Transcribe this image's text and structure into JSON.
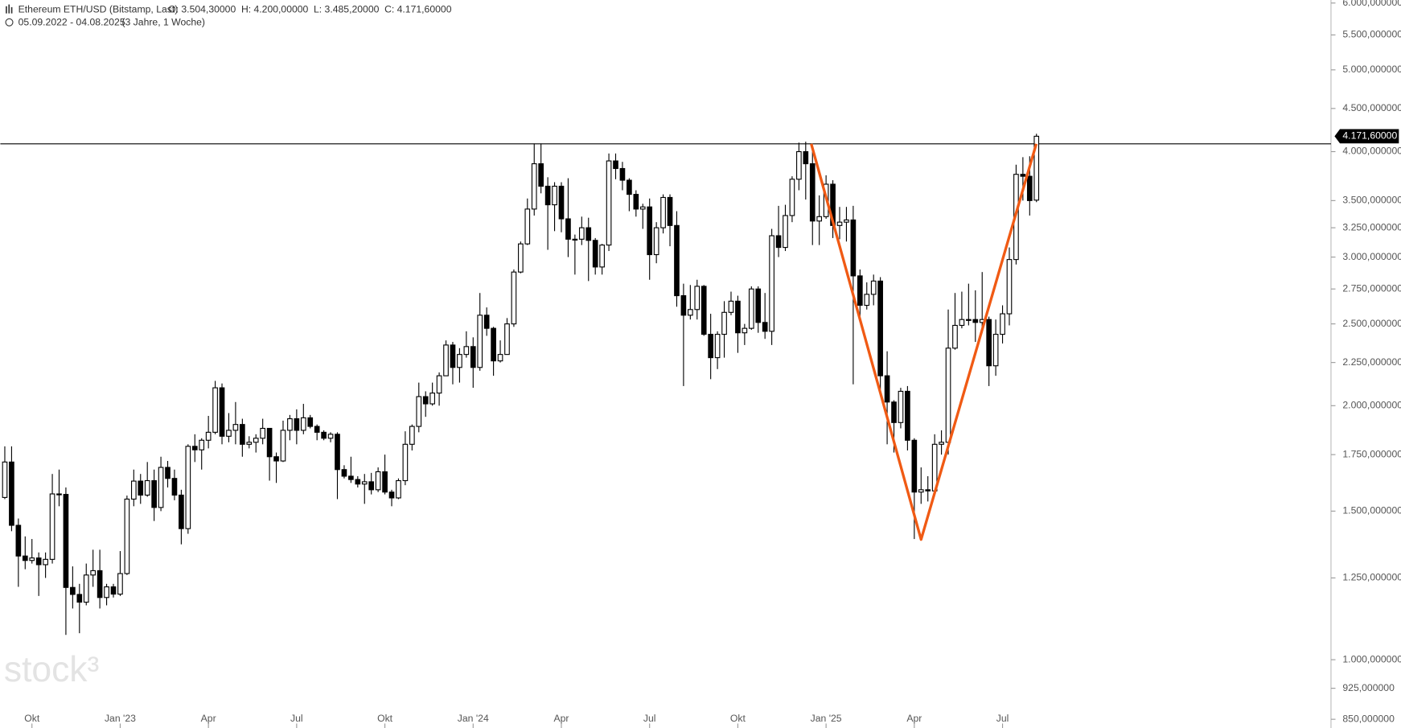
{
  "chart_data": {
    "type": "candlestick",
    "title": "Ethereum ETH/USD (Bitstamp, Last)",
    "header": [
      {
        "name": "O:",
        "label": "3.504,30000"
      },
      {
        "name": "H:",
        "label": "4.200,00000"
      },
      {
        "name": "L:",
        "label": "3.485,20000"
      },
      {
        "name": "C:",
        "label": "4.171,60000"
      }
    ],
    "subtitle": "05.09.2022 - 04.08.2025",
    "period": "(3 Jahre, 1 Woche)",
    "watermark": "stock³",
    "log_scale": true,
    "up_color": "#ffffff",
    "down_color": "#000000",
    "edge_color": "#000000",
    "categories": [
      null,
      null,
      null,
      null,
      "Okt",
      null,
      null,
      null,
      null,
      null,
      null,
      null,
      null,
      null,
      null,
      null,
      null,
      "Jan '23",
      null,
      null,
      null,
      null,
      null,
      null,
      null,
      null,
      null,
      null,
      null,
      null,
      "Apr",
      null,
      null,
      null,
      null,
      null,
      null,
      null,
      null,
      null,
      null,
      null,
      null,
      "Jul",
      null,
      null,
      null,
      null,
      null,
      null,
      null,
      null,
      null,
      null,
      null,
      null,
      "Okt",
      null,
      null,
      null,
      null,
      null,
      null,
      null,
      null,
      null,
      null,
      null,
      null,
      "Jan '24",
      null,
      null,
      null,
      null,
      null,
      null,
      null,
      null,
      null,
      null,
      null,
      null,
      "Apr",
      null,
      null,
      null,
      null,
      null,
      null,
      null,
      null,
      null,
      null,
      null,
      null,
      "Jul",
      null,
      null,
      null,
      null,
      null,
      null,
      null,
      null,
      null,
      null,
      null,
      null,
      "Okt",
      null,
      null,
      null,
      null,
      null,
      null,
      null,
      null,
      null,
      null,
      null,
      null,
      "Jan '25",
      null,
      null,
      null,
      null,
      null,
      null,
      null,
      null,
      null,
      null,
      null,
      null,
      "Apr",
      null,
      null,
      null,
      null,
      null,
      null,
      null,
      null,
      null,
      null,
      null,
      null,
      "Jul",
      null,
      null,
      null,
      null,
      null
    ],
    "open": [
      1557,
      1715,
      1443,
      1327,
      1311,
      1320,
      1296,
      1315,
      1572,
      1570,
      1218,
      1195,
      1170,
      1260,
      1275,
      1185,
      1220,
      1196,
      1265,
      1550,
      1628,
      1567,
      1630,
      1515,
      1690,
      1640,
      1567,
      1430,
      1790,
      1773,
      1820,
      1860,
      2100,
      1840,
      1870,
      1900,
      1800,
      1810,
      1830,
      1880,
      1740,
      1720,
      1870,
      1930,
      1870,
      1935,
      1890,
      1860,
      1830,
      1850,
      1680,
      1650,
      1635,
      1615,
      1625,
      1590,
      1670,
      1580,
      1555,
      1630,
      1800,
      1890,
      2050,
      2010,
      2070,
      2170,
      2360,
      2220,
      2300,
      2350,
      2220,
      2560,
      2470,
      2260,
      2300,
      2500,
      2880,
      3110,
      3420,
      3870,
      3640,
      3460,
      3640,
      3330,
      3150,
      3150,
      3250,
      3140,
      2920,
      3100,
      3900,
      3820,
      3700,
      3560,
      3420,
      3440,
      3020,
      3250,
      3530,
      3270,
      2700,
      2560,
      2600,
      2770,
      2430,
      2280,
      2430,
      2580,
      2660,
      2440,
      2470,
      2750,
      2510,
      2450,
      3180,
      3080,
      3360,
      3710,
      4000,
      3870,
      3310,
      3350,
      3660,
      3270,
      3300,
      3320,
      2850,
      2630,
      2710,
      2810,
      2170,
      2020,
      1910,
      2080,
      1820,
      1580,
      1590,
      1585,
      1800,
      1810,
      2340,
      2490,
      2530,
      2530,
      2510,
      2530,
      2230,
      2430,
      2570,
      2980,
      3760,
      3740,
      3504.3
    ],
    "high": [
      1790,
      1790,
      1470,
      1400,
      1390,
      1340,
      1340,
      1660,
      1680,
      1600,
      1290,
      1230,
      1300,
      1350,
      1350,
      1230,
      1230,
      1345,
      1565,
      1680,
      1660,
      1715,
      1680,
      1740,
      1720,
      1680,
      1590,
      1800,
      1850,
      1830,
      1945,
      2140,
      2125,
      1960,
      2020,
      1930,
      1840,
      1850,
      1930,
      1880,
      1760,
      1920,
      1950,
      1980,
      2010,
      1950,
      1900,
      1870,
      1860,
      1860,
      1700,
      1740,
      1650,
      1660,
      1665,
      1690,
      1750,
      1590,
      1640,
      1865,
      1900,
      2130,
      2080,
      2130,
      2190,
      2390,
      2380,
      2340,
      2450,
      2410,
      2720,
      2615,
      2480,
      2390,
      2540,
      2900,
      3130,
      3520,
      4090,
      4090,
      3730,
      3680,
      3680,
      3720,
      3190,
      3350,
      3340,
      3160,
      3110,
      3980,
      3980,
      3890,
      3720,
      3600,
      3470,
      3520,
      3300,
      3560,
      3560,
      3400,
      2790,
      2780,
      2820,
      2780,
      2570,
      2450,
      2660,
      2730,
      2700,
      2500,
      2770,
      2770,
      2720,
      3240,
      3450,
      3460,
      3740,
      4100,
      4110,
      4000,
      3550,
      3750,
      3700,
      3440,
      3440,
      3450,
      2900,
      2800,
      2860,
      2840,
      2320,
      2030,
      2100,
      2110,
      1830,
      1690,
      1650,
      1850,
      1870,
      2600,
      2720,
      2730,
      2790,
      2740,
      2880,
      2550,
      2530,
      2630,
      3080,
      3860,
      3940,
      3950,
      4200
    ],
    "low": [
      1550,
      1420,
      1220,
      1280,
      1300,
      1190,
      1250,
      1300,
      1520,
      1070,
      1150,
      1075,
      1160,
      1220,
      1150,
      1160,
      1185,
      1190,
      1260,
      1520,
      1530,
      1560,
      1460,
      1500,
      1600,
      1545,
      1370,
      1410,
      1715,
      1680,
      1780,
      1850,
      1800,
      1810,
      1800,
      1740,
      1780,
      1760,
      1800,
      1630,
      1620,
      1715,
      1820,
      1800,
      1850,
      1880,
      1820,
      1820,
      1810,
      1550,
      1640,
      1620,
      1600,
      1530,
      1570,
      1580,
      1570,
      1520,
      1550,
      1610,
      1770,
      1860,
      1940,
      2000,
      2000,
      2170,
      2120,
      2130,
      2280,
      2100,
      2200,
      2420,
      2170,
      2250,
      2300,
      2480,
      2870,
      3100,
      3360,
      3570,
      3060,
      3220,
      3210,
      3000,
      2860,
      3100,
      2810,
      2860,
      2860,
      3050,
      3710,
      3600,
      3400,
      3350,
      3240,
      2820,
      2950,
      3200,
      3090,
      2620,
      2110,
      2530,
      2530,
      2420,
      2150,
      2210,
      2280,
      2560,
      2310,
      2360,
      2460,
      2440,
      2400,
      2360,
      3000,
      3050,
      3300,
      3600,
      3510,
      3100,
      3100,
      3330,
      3160,
      3150,
      3130,
      2120,
      2550,
      2600,
      2630,
      2090,
      1800,
      1760,
      1880,
      1770,
      1390,
      1530,
      1540,
      1570,
      1750,
      1750,
      2330,
      2470,
      2490,
      2380,
      2440,
      2110,
      2170,
      2370,
      2490,
      2940,
      3500,
      3360,
      3485.2
    ],
    "close": [
      1715,
      1443,
      1327,
      1311,
      1320,
      1296,
      1315,
      1572,
      1570,
      1218,
      1195,
      1170,
      1260,
      1275,
      1185,
      1220,
      1196,
      1265,
      1550,
      1628,
      1567,
      1630,
      1515,
      1690,
      1640,
      1567,
      1430,
      1790,
      1773,
      1820,
      1860,
      2100,
      1840,
      1870,
      1900,
      1800,
      1810,
      1830,
      1880,
      1740,
      1720,
      1870,
      1930,
      1870,
      1935,
      1890,
      1860,
      1830,
      1850,
      1680,
      1650,
      1635,
      1615,
      1625,
      1590,
      1670,
      1580,
      1555,
      1630,
      1800,
      1890,
      2050,
      2010,
      2070,
      2170,
      2360,
      2220,
      2300,
      2350,
      2220,
      2560,
      2470,
      2260,
      2300,
      2500,
      2880,
      3110,
      3420,
      3870,
      3640,
      3460,
      3640,
      3330,
      3150,
      3150,
      3250,
      3140,
      2920,
      3100,
      3900,
      3820,
      3700,
      3560,
      3420,
      3440,
      3020,
      3250,
      3530,
      3270,
      2700,
      2560,
      2600,
      2770,
      2430,
      2280,
      2430,
      2580,
      2660,
      2440,
      2470,
      2750,
      2510,
      2450,
      3180,
      3080,
      3360,
      3710,
      4000,
      3870,
      3310,
      3350,
      3660,
      3270,
      3300,
      3320,
      2850,
      2630,
      2710,
      2810,
      2170,
      2020,
      1910,
      2080,
      1820,
      1580,
      1590,
      1585,
      1800,
      1810,
      2340,
      2490,
      2530,
      2530,
      2510,
      2530,
      2230,
      2430,
      2570,
      2980,
      3760,
      3740,
      3500,
      4171.6
    ],
    "last_price": {
      "value": 4171.6,
      "label": "4.171,60000"
    },
    "ylim": [
      830,
      6050
    ],
    "yticks": [
      {
        "value": 6000,
        "label": "6.000,000000"
      },
      {
        "value": 5500,
        "label": "5.500,000000"
      },
      {
        "value": 5000,
        "label": "5.000,000000"
      },
      {
        "value": 4500,
        "label": "4.500,000000"
      },
      {
        "value": 4000,
        "label": "4.000,000000"
      },
      {
        "value": 3500,
        "label": "3.500,000000"
      },
      {
        "value": 3250,
        "label": "3.250,000000"
      },
      {
        "value": 3000,
        "label": "3.000,000000"
      },
      {
        "value": 2750,
        "label": "2.750,000000"
      },
      {
        "value": 2500,
        "label": "2.500,000000"
      },
      {
        "value": 2250,
        "label": "2.250,000000"
      },
      {
        "value": 2000,
        "label": "2.000,000000"
      },
      {
        "value": 1750,
        "label": "1.750,000000"
      },
      {
        "value": 1500,
        "label": "1.500,000000"
      },
      {
        "value": 1250,
        "label": "1.250,000000"
      },
      {
        "value": 1000,
        "label": "1.000,000000"
      },
      {
        "value": 925,
        "label": "925,000000"
      },
      {
        "value": 850,
        "label": "850,000000"
      }
    ],
    "grid": false
  }
}
